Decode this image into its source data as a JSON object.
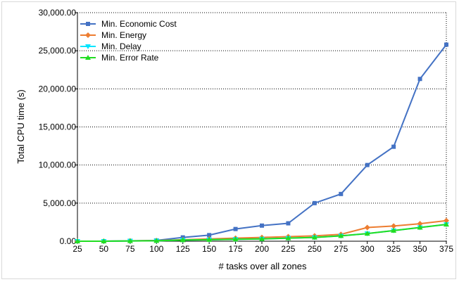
{
  "chart_data": {
    "type": "line",
    "xlabel": "# tasks over all zones",
    "ylabel": "Total CPU time (s)",
    "x": [
      25,
      50,
      75,
      100,
      125,
      150,
      175,
      200,
      225,
      250,
      275,
      300,
      325,
      350,
      375
    ],
    "x_tick_labels": [
      "25",
      "50",
      "75",
      "100",
      "125",
      "150",
      "175",
      "200",
      "225",
      "250",
      "275",
      "300",
      "325",
      "350",
      "375"
    ],
    "y_ticks": [
      0,
      5000,
      10000,
      15000,
      20000,
      25000,
      30000
    ],
    "y_tick_labels": [
      "0.00",
      "5,000.00",
      "10,000.00",
      "15,000.00",
      "20,000.00",
      "25,000.00",
      "30,000.00"
    ],
    "ylim": [
      0,
      30000
    ],
    "grid": "horizontal dotted",
    "legend_position": "top-left",
    "series": [
      {
        "name": "Min. Economic Cost",
        "color": "#4472c4",
        "marker": "square",
        "values": [
          0,
          0,
          50,
          100,
          500,
          800,
          1600,
          2050,
          2350,
          5000,
          6200,
          10000,
          12400,
          21300,
          25800
        ]
      },
      {
        "name": "Min. Energy",
        "color": "#ed7d31",
        "marker": "diamond",
        "values": [
          0,
          0,
          50,
          80,
          200,
          300,
          400,
          500,
          600,
          700,
          900,
          1800,
          2000,
          2300,
          2700
        ]
      },
      {
        "name": "Min. Delay",
        "color": "#00e5ff",
        "marker": "triangle-down",
        "values": [
          0,
          0,
          40,
          60,
          150,
          200,
          250,
          300,
          400,
          500,
          700,
          1000,
          1400,
          1800,
          2200
        ]
      },
      {
        "name": "Min. Error Rate",
        "color": "#22dd22",
        "marker": "triangle-up",
        "values": [
          0,
          0,
          40,
          60,
          150,
          200,
          250,
          300,
          400,
          500,
          700,
          1000,
          1400,
          1800,
          2200
        ]
      }
    ]
  }
}
